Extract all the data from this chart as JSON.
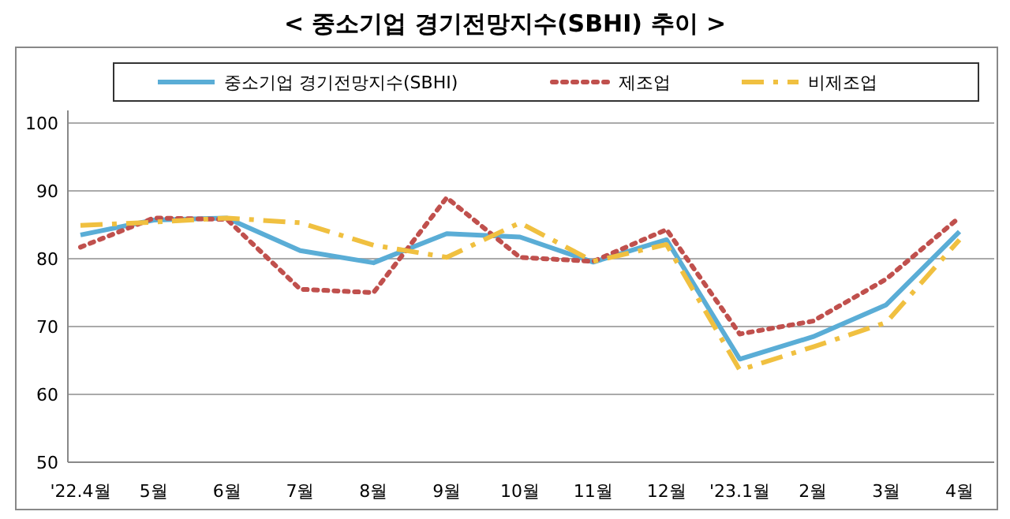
{
  "chart_data": {
    "type": "line",
    "title": "< 중소기업 경기전망지수(SBHI) 추이 >",
    "categories": [
      "'22.4월",
      "5월",
      "6월",
      "7월",
      "8월",
      "9월",
      "10월",
      "11월",
      "12월",
      "'23.1월",
      "2월",
      "3월",
      "4월"
    ],
    "series": [
      {
        "name": "중소기업 경기전망지수(SBHI)",
        "color": "#5aadd6",
        "line_style": "solid",
        "values": [
          83.5,
          85.7,
          86.0,
          81.2,
          79.4,
          83.7,
          83.2,
          79.5,
          82.8,
          65.2,
          68.5,
          73.2,
          84.0
        ]
      },
      {
        "name": "제조업",
        "color": "#c0504d",
        "line_style": "dotted",
        "values": [
          81.7,
          86.0,
          85.8,
          75.5,
          75.0,
          89.0,
          80.2,
          79.6,
          84.3,
          68.9,
          70.8,
          77.0,
          86.1
        ]
      },
      {
        "name": "비제조업",
        "color": "#f0c040",
        "line_style": "dashed",
        "values": [
          84.9,
          85.4,
          86.0,
          85.3,
          82.0,
          80.2,
          85.3,
          79.6,
          82.1,
          63.6,
          67.0,
          70.6,
          82.8
        ]
      }
    ],
    "ylim": [
      50,
      100
    ],
    "yticks": [
      50,
      60,
      70,
      80,
      90,
      100
    ],
    "grid": "y",
    "legend": "top"
  }
}
